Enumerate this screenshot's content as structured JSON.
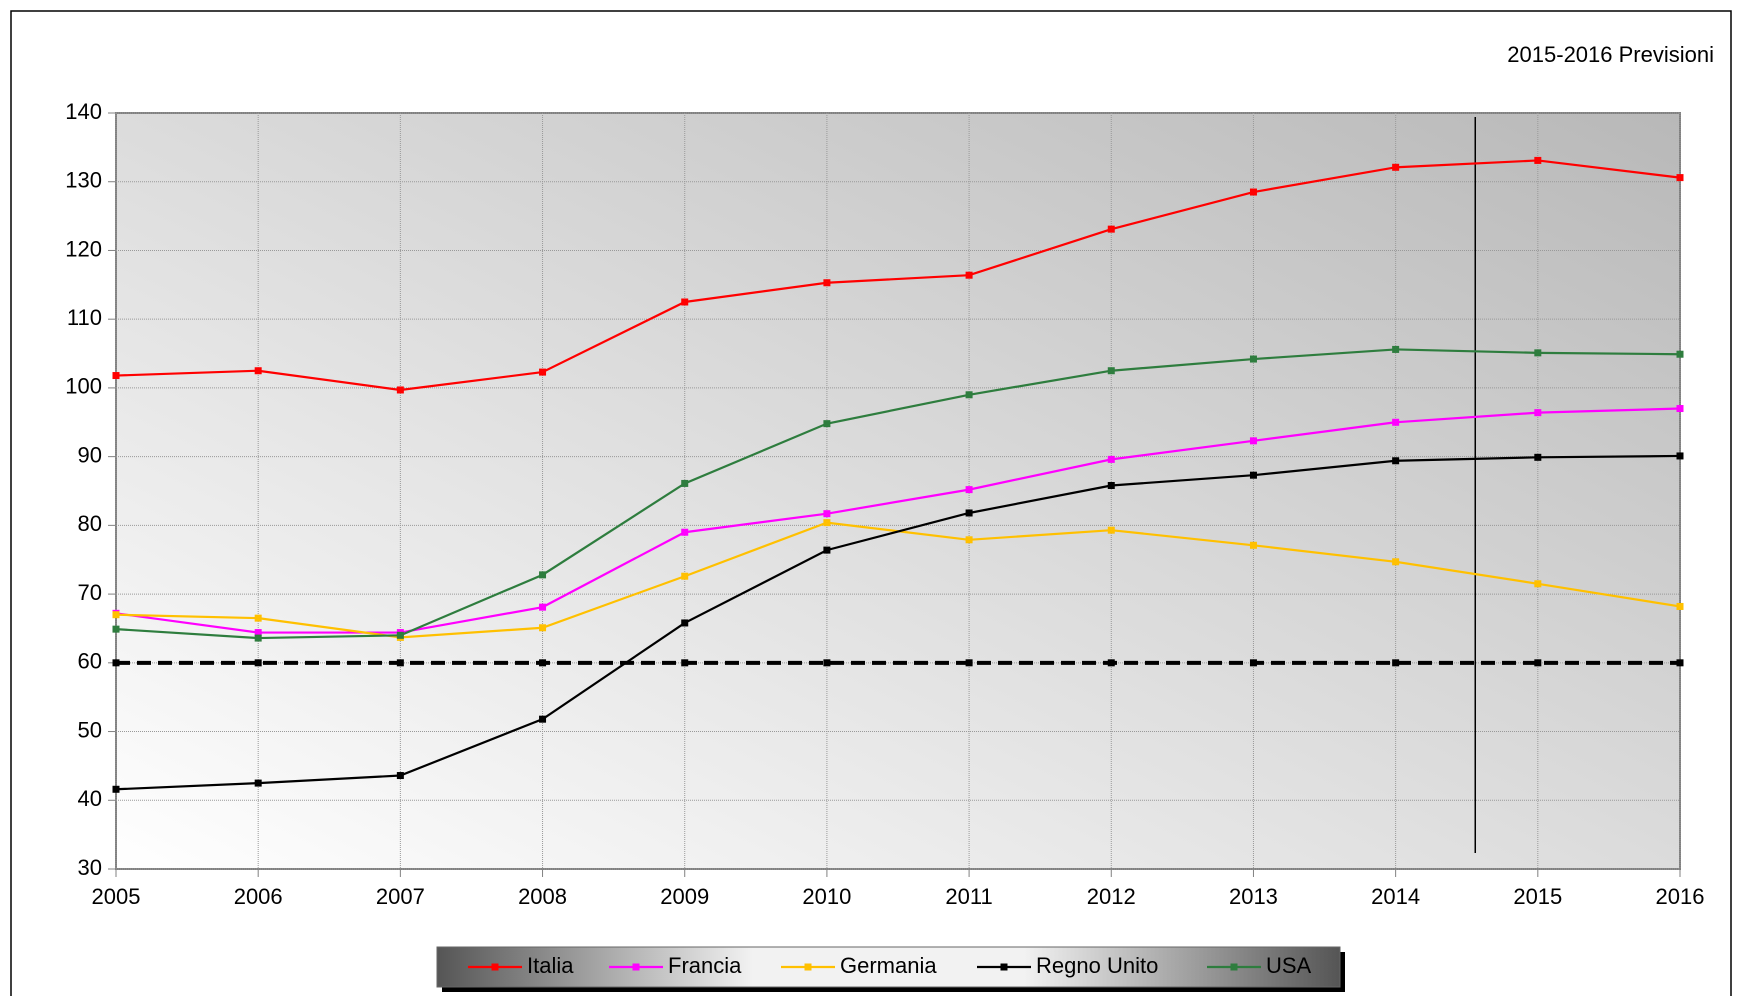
{
  "chart_data": {
    "type": "line",
    "annotation": "2015-2016 Previsioni",
    "x": [
      2005,
      2006,
      2007,
      2008,
      2009,
      2010,
      2011,
      2012,
      2013,
      2014,
      2015,
      2016
    ],
    "xlim": [
      2005,
      2016
    ],
    "xticks": [
      2005,
      2006,
      2007,
      2008,
      2009,
      2010,
      2011,
      2012,
      2013,
      2014,
      2015,
      2016
    ],
    "ylim": [
      30,
      140
    ],
    "yticks": [
      30,
      40,
      50,
      60,
      70,
      80,
      90,
      100,
      110,
      120,
      130,
      140
    ],
    "grid": true,
    "reference_line": 60,
    "forecast_divider": 2014.56,
    "series": [
      {
        "name": "Italia",
        "color": "#ff0000",
        "values": [
          101.8,
          102.5,
          99.7,
          102.3,
          112.5,
          115.3,
          116.4,
          123.1,
          128.5,
          132.1,
          133.1,
          130.6
        ]
      },
      {
        "name": "Francia",
        "color": "#ff00ff",
        "values": [
          67.2,
          64.4,
          64.4,
          68.1,
          79.0,
          81.7,
          85.2,
          89.6,
          92.3,
          95.0,
          96.4,
          97.0
        ]
      },
      {
        "name": "Germania",
        "color": "#ffc000",
        "values": [
          67.0,
          66.5,
          63.7,
          65.1,
          72.6,
          80.4,
          77.9,
          79.3,
          77.1,
          74.7,
          71.5,
          68.2
        ]
      },
      {
        "name": "Regno Unito",
        "color": "#000000",
        "values": [
          41.6,
          42.5,
          43.6,
          51.8,
          65.8,
          76.4,
          81.8,
          85.8,
          87.3,
          89.4,
          89.9,
          90.1
        ]
      },
      {
        "name": "USA",
        "color": "#2e7d3e",
        "values": [
          64.9,
          63.6,
          64.0,
          72.8,
          86.1,
          94.8,
          99.0,
          102.5,
          104.2,
          105.6,
          105.1,
          104.9
        ]
      }
    ]
  }
}
